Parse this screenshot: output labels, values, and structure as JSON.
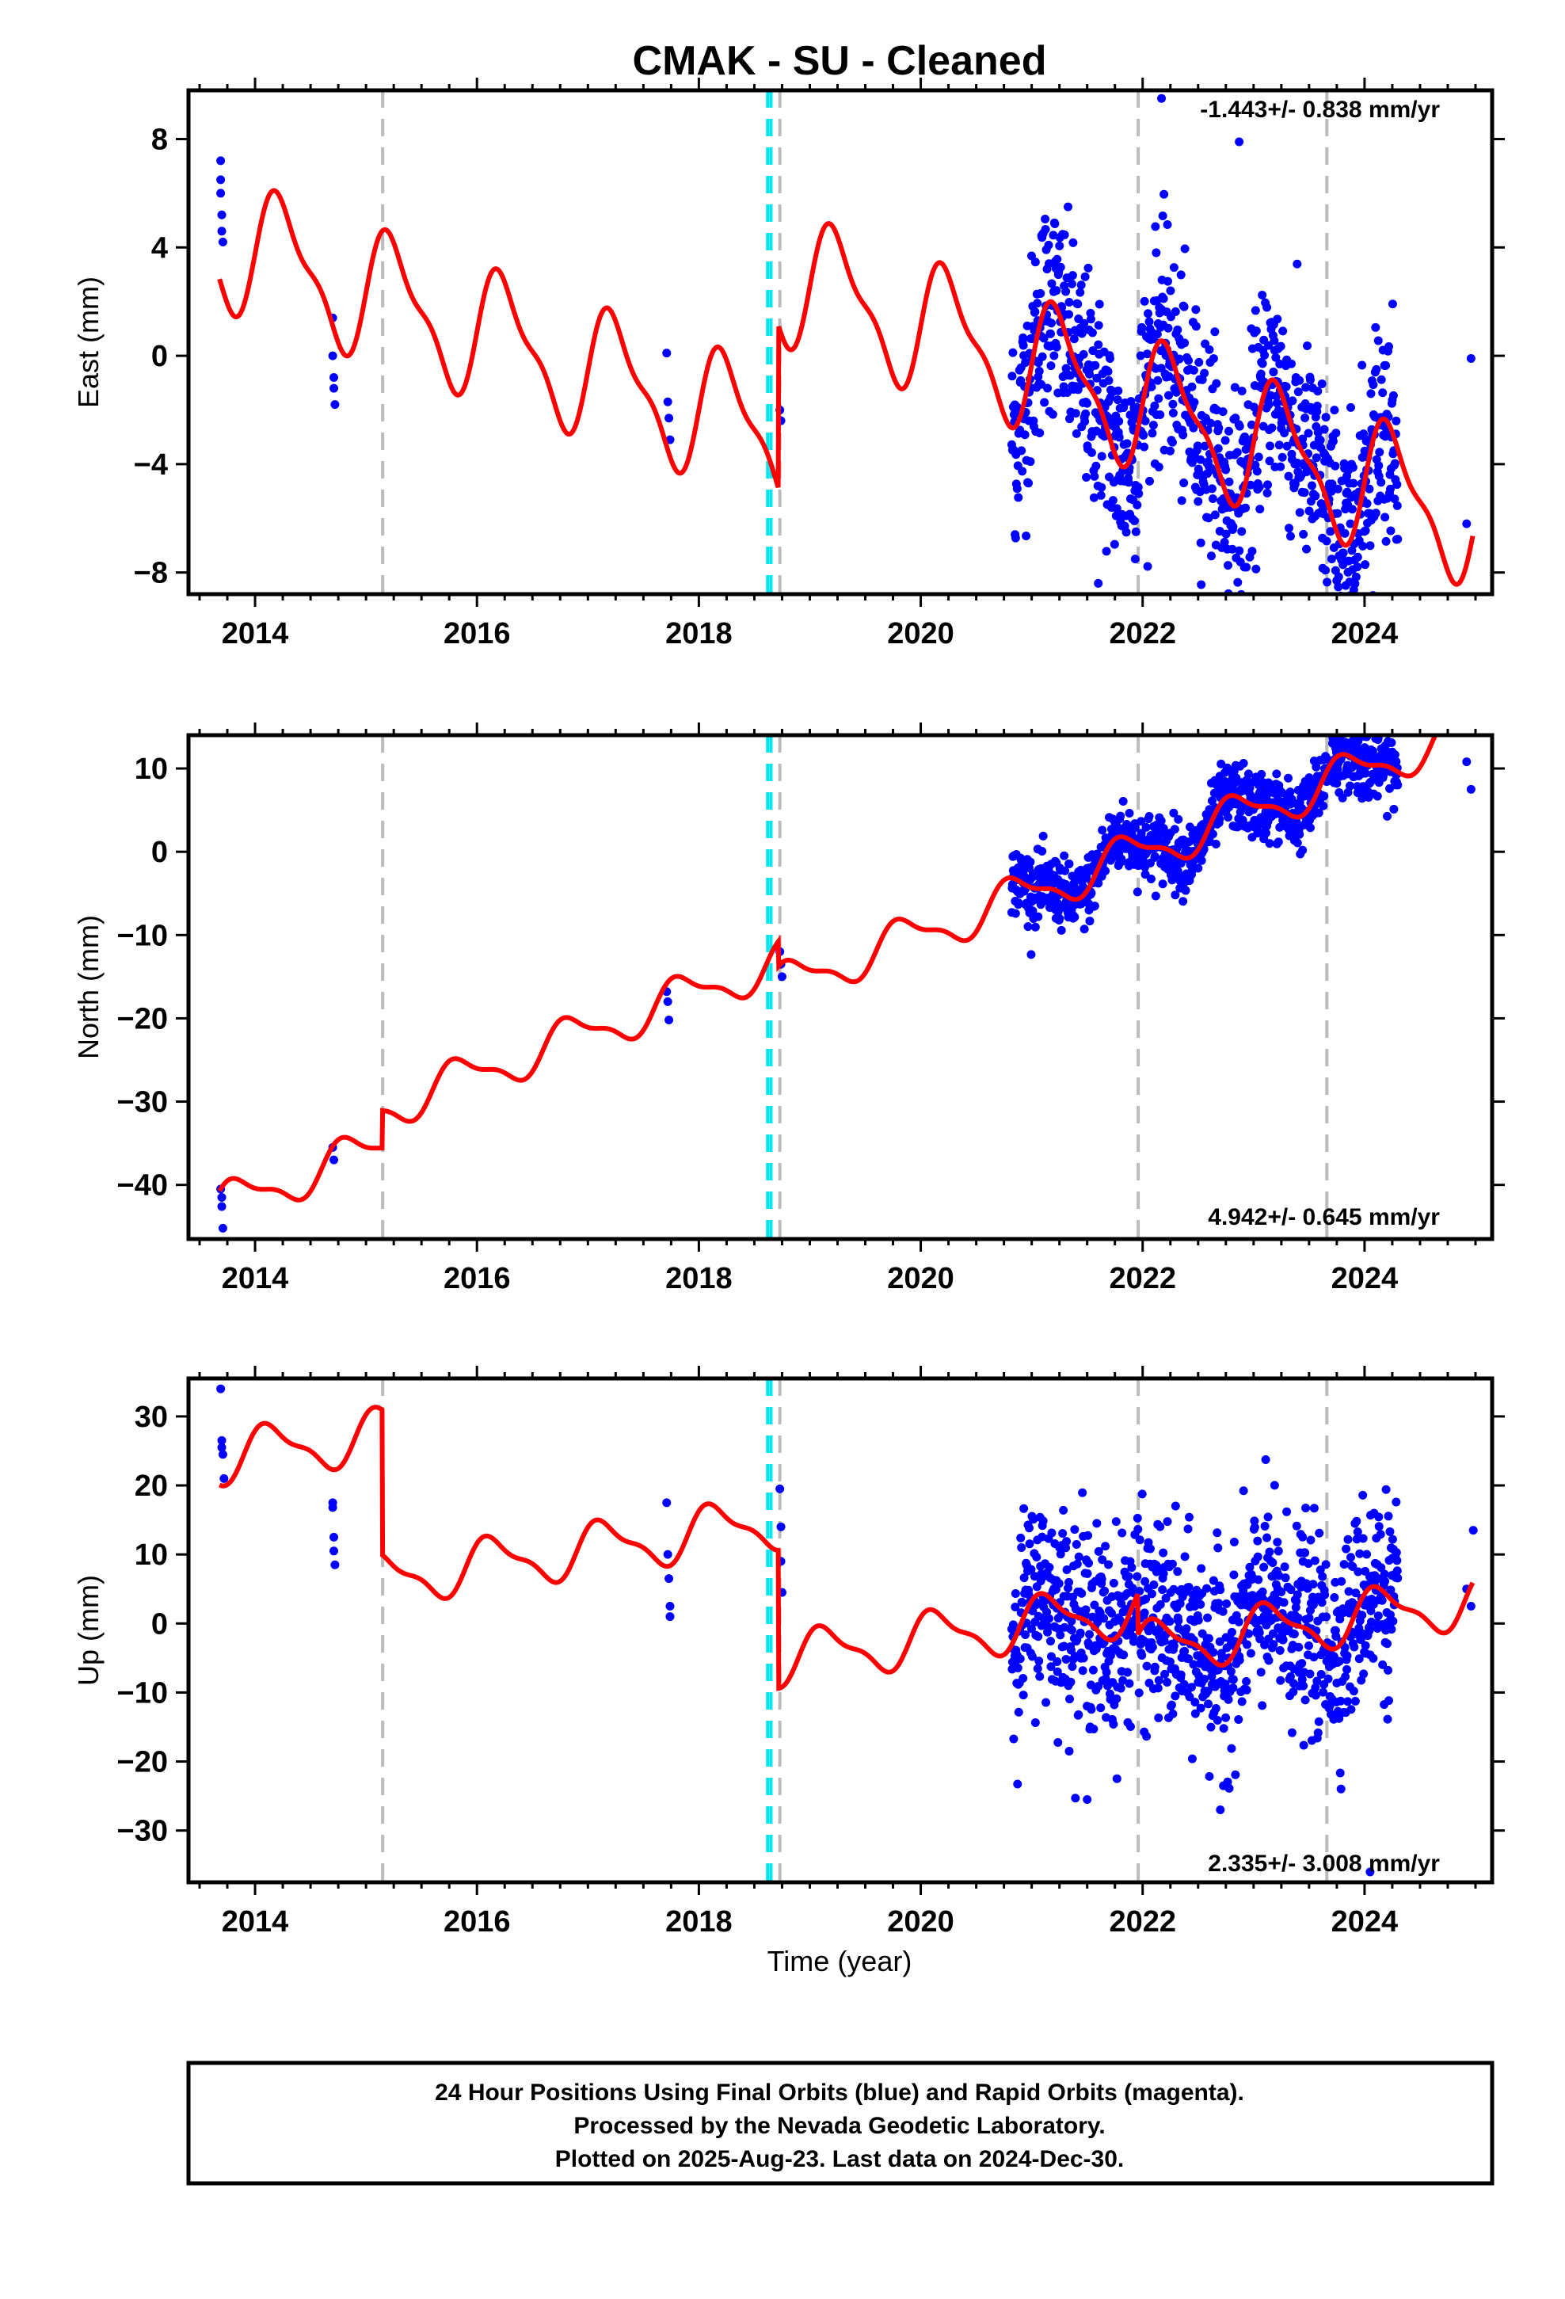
{
  "title": "CMAK  - SU - Cleaned",
  "xlabel": "Time (year)",
  "footer": {
    "line1": "24 Hour Positions Using Final Orbits (blue) and Rapid Orbits (magenta).",
    "line2": "Processed by the Nevada Geodetic Laboratory.",
    "line3": "Plotted on 2025-Aug-23. Last data on 2024-Dec-30."
  },
  "colors": {
    "data": "#0000ff",
    "model": "#ff0000",
    "event_gray": "#bbbbbb",
    "event_cyan": "#00e5ee"
  },
  "chart_data": [
    {
      "type": "scatter",
      "component": "East",
      "ylabel": "East (mm)",
      "rate_label": "-1.443+/- 0.838 mm/yr",
      "xlim": [
        2013.4,
        2025.15
      ],
      "ylim": [
        -8.8,
        9.8
      ],
      "yticks": [
        8,
        4,
        0,
        -4,
        -8
      ],
      "yticklabels": [
        "8",
        "4",
        "0",
        "−4",
        "−8"
      ],
      "xticks": [
        2014,
        2016,
        2018,
        2020,
        2022,
        2024
      ],
      "grid": false,
      "events_gray": [
        2015.15,
        2018.73,
        2021.96,
        2023.66
      ],
      "events_cyan": [
        2018.62,
        2018.65
      ],
      "model_params": {
        "base": 4.2,
        "trend": -1.443,
        "amp": 2.2,
        "phase": 0.0,
        "offsets": [
          [
            2018.72,
            6.0
          ]
        ]
      },
      "points_early": [
        [
          2013.69,
          7.2
        ],
        [
          2013.69,
          6.5
        ],
        [
          2013.69,
          6.0
        ],
        [
          2013.7,
          5.2
        ],
        [
          2013.7,
          4.6
        ],
        [
          2013.71,
          4.2
        ],
        [
          2014.7,
          1.4
        ],
        [
          2014.7,
          0.0
        ],
        [
          2014.71,
          -0.8
        ],
        [
          2014.71,
          -1.2
        ],
        [
          2014.72,
          -1.8
        ],
        [
          2017.71,
          0.1
        ],
        [
          2017.72,
          -1.7
        ],
        [
          2017.73,
          -2.3
        ],
        [
          2017.74,
          -3.1
        ],
        [
          2018.73,
          -2.0
        ],
        [
          2018.74,
          -2.4
        ]
      ],
      "cloud": {
        "start": 2020.82,
        "end": 2024.3,
        "spread": 2.0
      },
      "points_late": [
        [
          2024.92,
          -6.2
        ],
        [
          2024.96,
          -0.1
        ],
        [
          2022.17,
          9.5
        ],
        [
          2022.87,
          7.9
        ],
        [
          2021.6,
          -8.4
        ],
        [
          2020.85,
          -6.6
        ]
      ]
    },
    {
      "type": "scatter",
      "component": "North",
      "ylabel": "North (mm)",
      "rate_label": "4.942+/- 0.645 mm/yr",
      "xlim": [
        2013.4,
        2025.15
      ],
      "ylim": [
        -46.5,
        14.0
      ],
      "yticks": [
        10,
        0,
        -10,
        -20,
        -30,
        -40
      ],
      "yticklabels": [
        "10",
        "0",
        "−10",
        "−20",
        "−30",
        "−40"
      ],
      "xticks": [
        2014,
        2016,
        2018,
        2020,
        2022,
        2024
      ],
      "grid": false,
      "events_gray": [
        2015.15,
        2018.73,
        2021.96,
        2023.66
      ],
      "events_cyan": [
        2018.62,
        2018.65
      ],
      "model_params": {
        "base": -42.5,
        "trend": 4.942,
        "amp": 2.4,
        "phase": 0.4,
        "offsets": [
          [
            2015.15,
            4.5
          ],
          [
            2018.72,
            -3.0
          ]
        ]
      },
      "points_early": [
        [
          2013.69,
          -40.5
        ],
        [
          2013.7,
          -41.5
        ],
        [
          2013.7,
          -42.6
        ],
        [
          2013.71,
          -45.2
        ],
        [
          2014.7,
          -35.5
        ],
        [
          2014.71,
          -37.0
        ],
        [
          2017.71,
          -16.8
        ],
        [
          2017.72,
          -18.0
        ],
        [
          2017.73,
          -20.2
        ],
        [
          2018.73,
          -12.0
        ],
        [
          2018.74,
          -13.5
        ],
        [
          2018.75,
          -15.0
        ]
      ],
      "cloud": {
        "start": 2020.82,
        "end": 2024.3,
        "spread": 2.0
      },
      "points_late": [
        [
          2024.92,
          10.8
        ],
        [
          2024.96,
          7.5
        ]
      ]
    },
    {
      "type": "scatter",
      "component": "Up",
      "ylabel": "Up (mm)",
      "rate_label": "2.335+/- 3.008 mm/yr",
      "xlim": [
        2013.4,
        2025.15
      ],
      "ylim": [
        -37.5,
        35.5
      ],
      "yticks": [
        30,
        20,
        10,
        0,
        -10,
        -20,
        -30
      ],
      "yticklabels": [
        "30",
        "20",
        "10",
        "0",
        "−10",
        "−20",
        "−30"
      ],
      "xticks": [
        2014,
        2016,
        2018,
        2020,
        2022,
        2024
      ],
      "grid": false,
      "events_gray": [
        2015.15,
        2018.73,
        2021.96,
        2023.66
      ],
      "events_cyan": [
        2018.62,
        2018.65
      ],
      "model_params": {
        "base": 24.0,
        "trend": 2.335,
        "amp": 3.5,
        "phase": 0.1,
        "offsets": [
          [
            2015.15,
            -21.0
          ],
          [
            2018.72,
            -20.0
          ],
          [
            2021.96,
            -6.0
          ]
        ]
      },
      "points_early": [
        [
          2013.69,
          34.0
        ],
        [
          2013.7,
          26.5
        ],
        [
          2013.7,
          25.5
        ],
        [
          2013.71,
          24.5
        ],
        [
          2013.72,
          21.0
        ],
        [
          2014.7,
          17.5
        ],
        [
          2014.7,
          16.8
        ],
        [
          2014.71,
          12.5
        ],
        [
          2014.71,
          10.5
        ],
        [
          2014.72,
          8.5
        ],
        [
          2017.71,
          17.5
        ],
        [
          2017.72,
          10.0
        ],
        [
          2017.73,
          6.5
        ],
        [
          2017.74,
          2.5
        ],
        [
          2017.74,
          1.0
        ],
        [
          2018.73,
          19.5
        ],
        [
          2018.74,
          14.0
        ],
        [
          2018.74,
          9.0
        ],
        [
          2018.75,
          4.5
        ]
      ],
      "cloud": {
        "start": 2020.82,
        "end": 2024.3,
        "spread": 7.0
      },
      "points_late": [
        [
          2024.92,
          5.0
        ],
        [
          2024.96,
          2.5
        ],
        [
          2024.98,
          13.5
        ],
        [
          2024.05,
          -36.0
        ],
        [
          2022.7,
          -27.0
        ],
        [
          2021.5,
          -25.5
        ]
      ]
    }
  ]
}
